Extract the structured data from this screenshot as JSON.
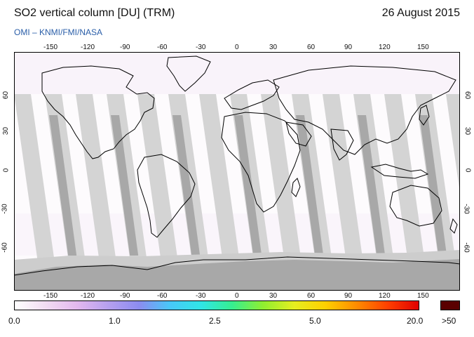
{
  "header": {
    "title": "SO2 vertical column [DU] (TRM)",
    "date": "26 August 2015",
    "credit": "OMI  –  KNMI/FMI/NASA"
  },
  "map": {
    "lon_ticks": [
      "-150",
      "-120",
      "-90",
      "-60",
      "-30",
      "0",
      "30",
      "60",
      "90",
      "120",
      "150"
    ],
    "lat_ticks": [
      "60",
      "30",
      "0",
      "-30",
      "-60"
    ],
    "colors": {
      "swath_light": "#d4d4d4",
      "swath_dark": "#a8a8a8",
      "land_outline": "#000000",
      "no_data": "#a8a8a8"
    }
  },
  "colorbar": {
    "labels": [
      "0.0",
      "1.0",
      "2.5",
      "5.0",
      "20.0",
      ">50"
    ],
    "gradient": [
      "#ffffff",
      "#f2dcf2",
      "#e3b8ee",
      "#b6a0ee",
      "#8c8cf0",
      "#48c8f8",
      "#30e6e6",
      "#36ee90",
      "#90ee30",
      "#e6ee20",
      "#ffd000",
      "#ff8c00",
      "#ff4000",
      "#e00000"
    ],
    "overflow_color": "#5a0000"
  }
}
